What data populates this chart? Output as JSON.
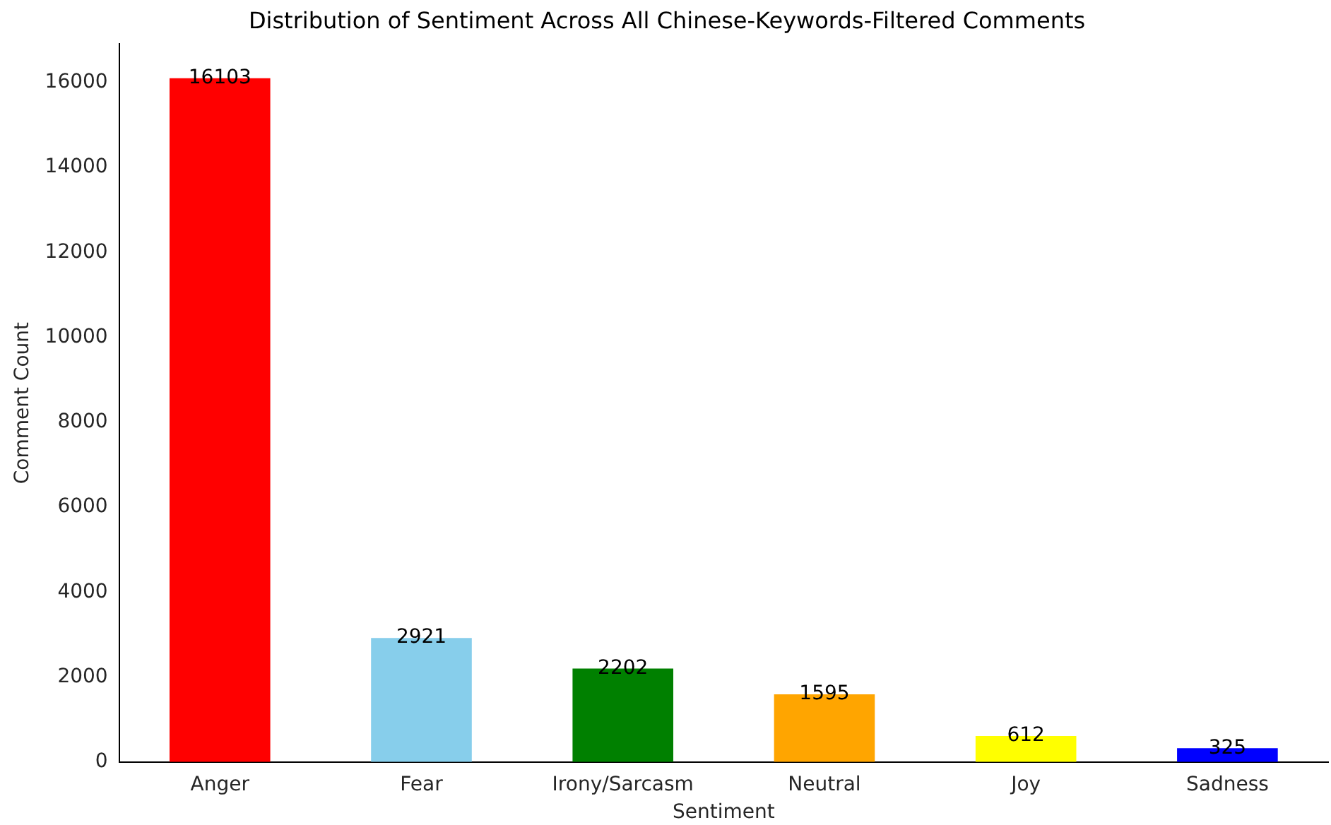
{
  "chart_data": {
    "type": "bar",
    "title": "Distribution of Sentiment Across All Chinese-Keywords-Filtered Comments",
    "xlabel": "Sentiment",
    "ylabel": "Comment Count",
    "categories": [
      "Anger",
      "Fear",
      "Irony/Sarcasm",
      "Neutral",
      "Joy",
      "Sadness"
    ],
    "values": [
      16103,
      2921,
      2202,
      1595,
      612,
      325
    ],
    "colors": [
      "#ff0000",
      "#87ceeb",
      "#008000",
      "#ffa500",
      "#ffff00",
      "#0000ff"
    ],
    "ylim": [
      0,
      16908
    ],
    "yticks": [
      0,
      2000,
      4000,
      6000,
      8000,
      10000,
      12000,
      14000,
      16000
    ],
    "data_labels": true,
    "grid": false,
    "legend": false
  }
}
